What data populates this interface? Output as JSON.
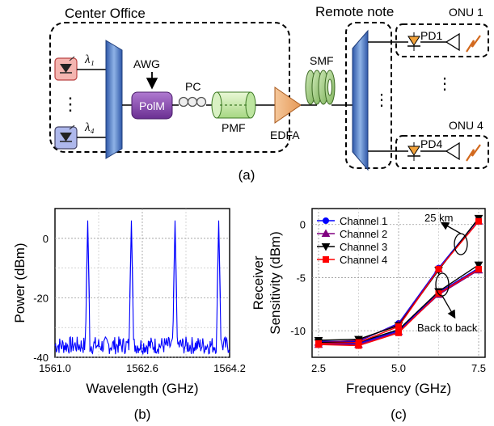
{
  "diagram": {
    "center_office_label": "Center Office",
    "remote_node_label": "Remote note",
    "onu1_label": "ONU 1",
    "onu4_label": "ONU 4",
    "pd1_label": "PD1",
    "pd4_label": "PD4",
    "lambda1_label": "λ₁",
    "lambda4_label": "λ₄",
    "awg_label": "AWG",
    "polm_label": "PolM",
    "pc_label": "PC",
    "pmf_label": "PMF",
    "edfa_label": "EDFA",
    "smf_label": "SMF",
    "vertical_dots": "⋮",
    "panel_a_caption": "(a)",
    "panel_b_caption": "(b)",
    "panel_c_caption": "(c)"
  },
  "chart_data": [
    {
      "type": "line",
      "xlabel": "Wavelength (GHz)",
      "ylabel": "Power (dBm)",
      "xlim": [
        1561.0,
        1564.2
      ],
      "ylim": [
        -40,
        10
      ],
      "x_ticks": [
        1561.0,
        1562.6,
        1564.2
      ],
      "x_tick_labels": [
        "1561.0",
        "1562.6",
        "1564.2"
      ],
      "y_ticks": [
        0,
        -20,
        -40
      ],
      "y_tick_labels": [
        "0",
        "-20",
        "-40"
      ],
      "grid": true,
      "color": "#0000ff",
      "peaks": [
        {
          "x": 1561.6,
          "y": 6
        },
        {
          "x": 1562.4,
          "y": 6
        },
        {
          "x": 1563.2,
          "y": 6
        },
        {
          "x": 1564.0,
          "y": 6
        }
      ],
      "noise_floor": -36
    },
    {
      "type": "line",
      "xlabel": "Frequency (GHz)",
      "ylabel_line1": "Receiver",
      "ylabel_line2": "Sensitivity (dBm)",
      "xlim": [
        2.5,
        7.5
      ],
      "ylim": [
        -12.5,
        1.5
      ],
      "x_ticks": [
        2.5,
        5.0,
        7.5
      ],
      "x_tick_labels": [
        "2.5",
        "5.0",
        "7.5"
      ],
      "y_ticks": [
        0,
        -5,
        -10
      ],
      "y_tick_labels": [
        "0",
        "-5",
        "-10"
      ],
      "grid": true,
      "legend_position": "top-left",
      "annotations": [
        "25 km",
        "Back to back"
      ],
      "x": [
        2.5,
        3.75,
        5.0,
        6.25,
        7.5
      ],
      "series": [
        {
          "name": "Channel 1",
          "color": "#0000ff",
          "marker": "circle",
          "groups": [
            [
              -11.0,
              -11.0,
              -9.3,
              -4.1,
              0.5
            ],
            [
              -11.2,
              -11.2,
              -10.0,
              -6.4,
              -4.1
            ]
          ]
        },
        {
          "name": "Channel 2",
          "color": "#800080",
          "marker": "triangle-up",
          "groups": [
            [
              -11.1,
              -10.9,
              -9.4,
              -4.2,
              0.3
            ],
            [
              -11.3,
              -11.3,
              -10.1,
              -6.6,
              -4.3
            ]
          ]
        },
        {
          "name": "Channel 3",
          "color": "#000000",
          "marker": "triangle-down",
          "groups": [
            [
              -10.9,
              -10.8,
              -9.5,
              -4.3,
              0.6
            ],
            [
              -11.1,
              -11.1,
              -9.9,
              -6.3,
              -3.8
            ]
          ]
        },
        {
          "name": "Channel 4",
          "color": "#ff0000",
          "marker": "square",
          "groups": [
            [
              -11.2,
              -11.1,
              -9.6,
              -4.2,
              0.3
            ],
            [
              -11.3,
              -11.4,
              -10.2,
              -6.5,
              -4.2
            ]
          ]
        }
      ]
    }
  ]
}
